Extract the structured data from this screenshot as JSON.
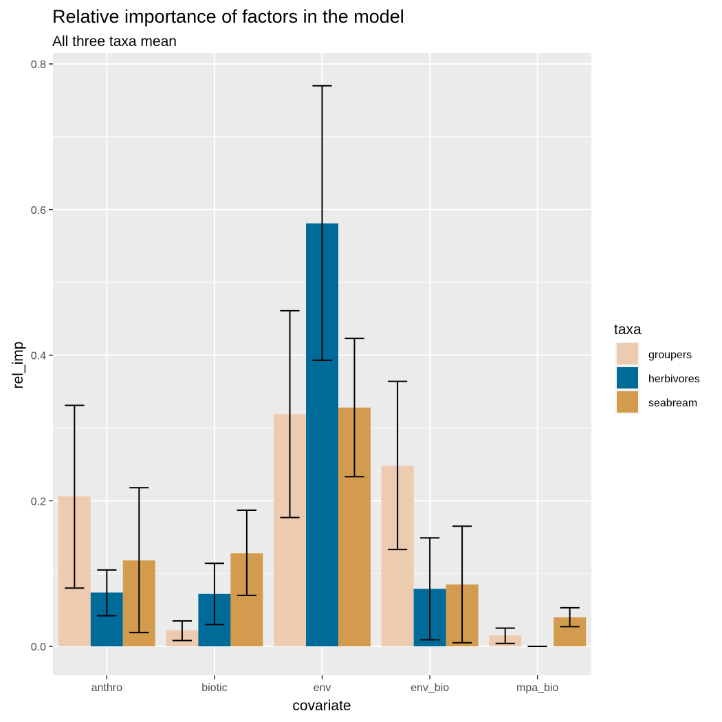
{
  "chart_data": {
    "type": "bar",
    "title": "Relative importance of factors in the model",
    "subtitle": "All three taxa mean",
    "xlabel": "covariate",
    "ylabel": "rel_imp",
    "categories": [
      "anthro",
      "biotic",
      "env",
      "env_bio",
      "mpa_bio"
    ],
    "ylim": [
      -0.04,
      0.8
    ],
    "yticks": [
      0.0,
      0.2,
      0.4,
      0.6,
      0.8
    ],
    "ytick_labels": [
      "0.0",
      "0.2",
      "0.4",
      "0.6",
      "0.8"
    ],
    "grid": true,
    "legend": {
      "title": "taxa",
      "position": "right"
    },
    "series": [
      {
        "name": "groupers",
        "color": "#EDCBB1",
        "values": [
          0.206,
          0.022,
          0.319,
          0.248,
          0.015
        ],
        "error_low": [
          0.08,
          0.008,
          0.177,
          0.133,
          0.004
        ],
        "error_high": [
          0.331,
          0.035,
          0.461,
          0.364,
          0.025
        ]
      },
      {
        "name": "herbivores",
        "color": "#006A99",
        "values": [
          0.074,
          0.072,
          0.581,
          0.079,
          0.0
        ],
        "error_low": [
          0.042,
          0.03,
          0.393,
          0.009,
          0.0
        ],
        "error_high": [
          0.105,
          0.114,
          0.77,
          0.149,
          0.0
        ]
      },
      {
        "name": "seabream",
        "color": "#D39B4D",
        "values": [
          0.118,
          0.128,
          0.328,
          0.085,
          0.04
        ],
        "error_low": [
          0.019,
          0.07,
          0.233,
          0.005,
          0.027
        ],
        "error_high": [
          0.218,
          0.187,
          0.423,
          0.165,
          0.053
        ]
      }
    ]
  }
}
